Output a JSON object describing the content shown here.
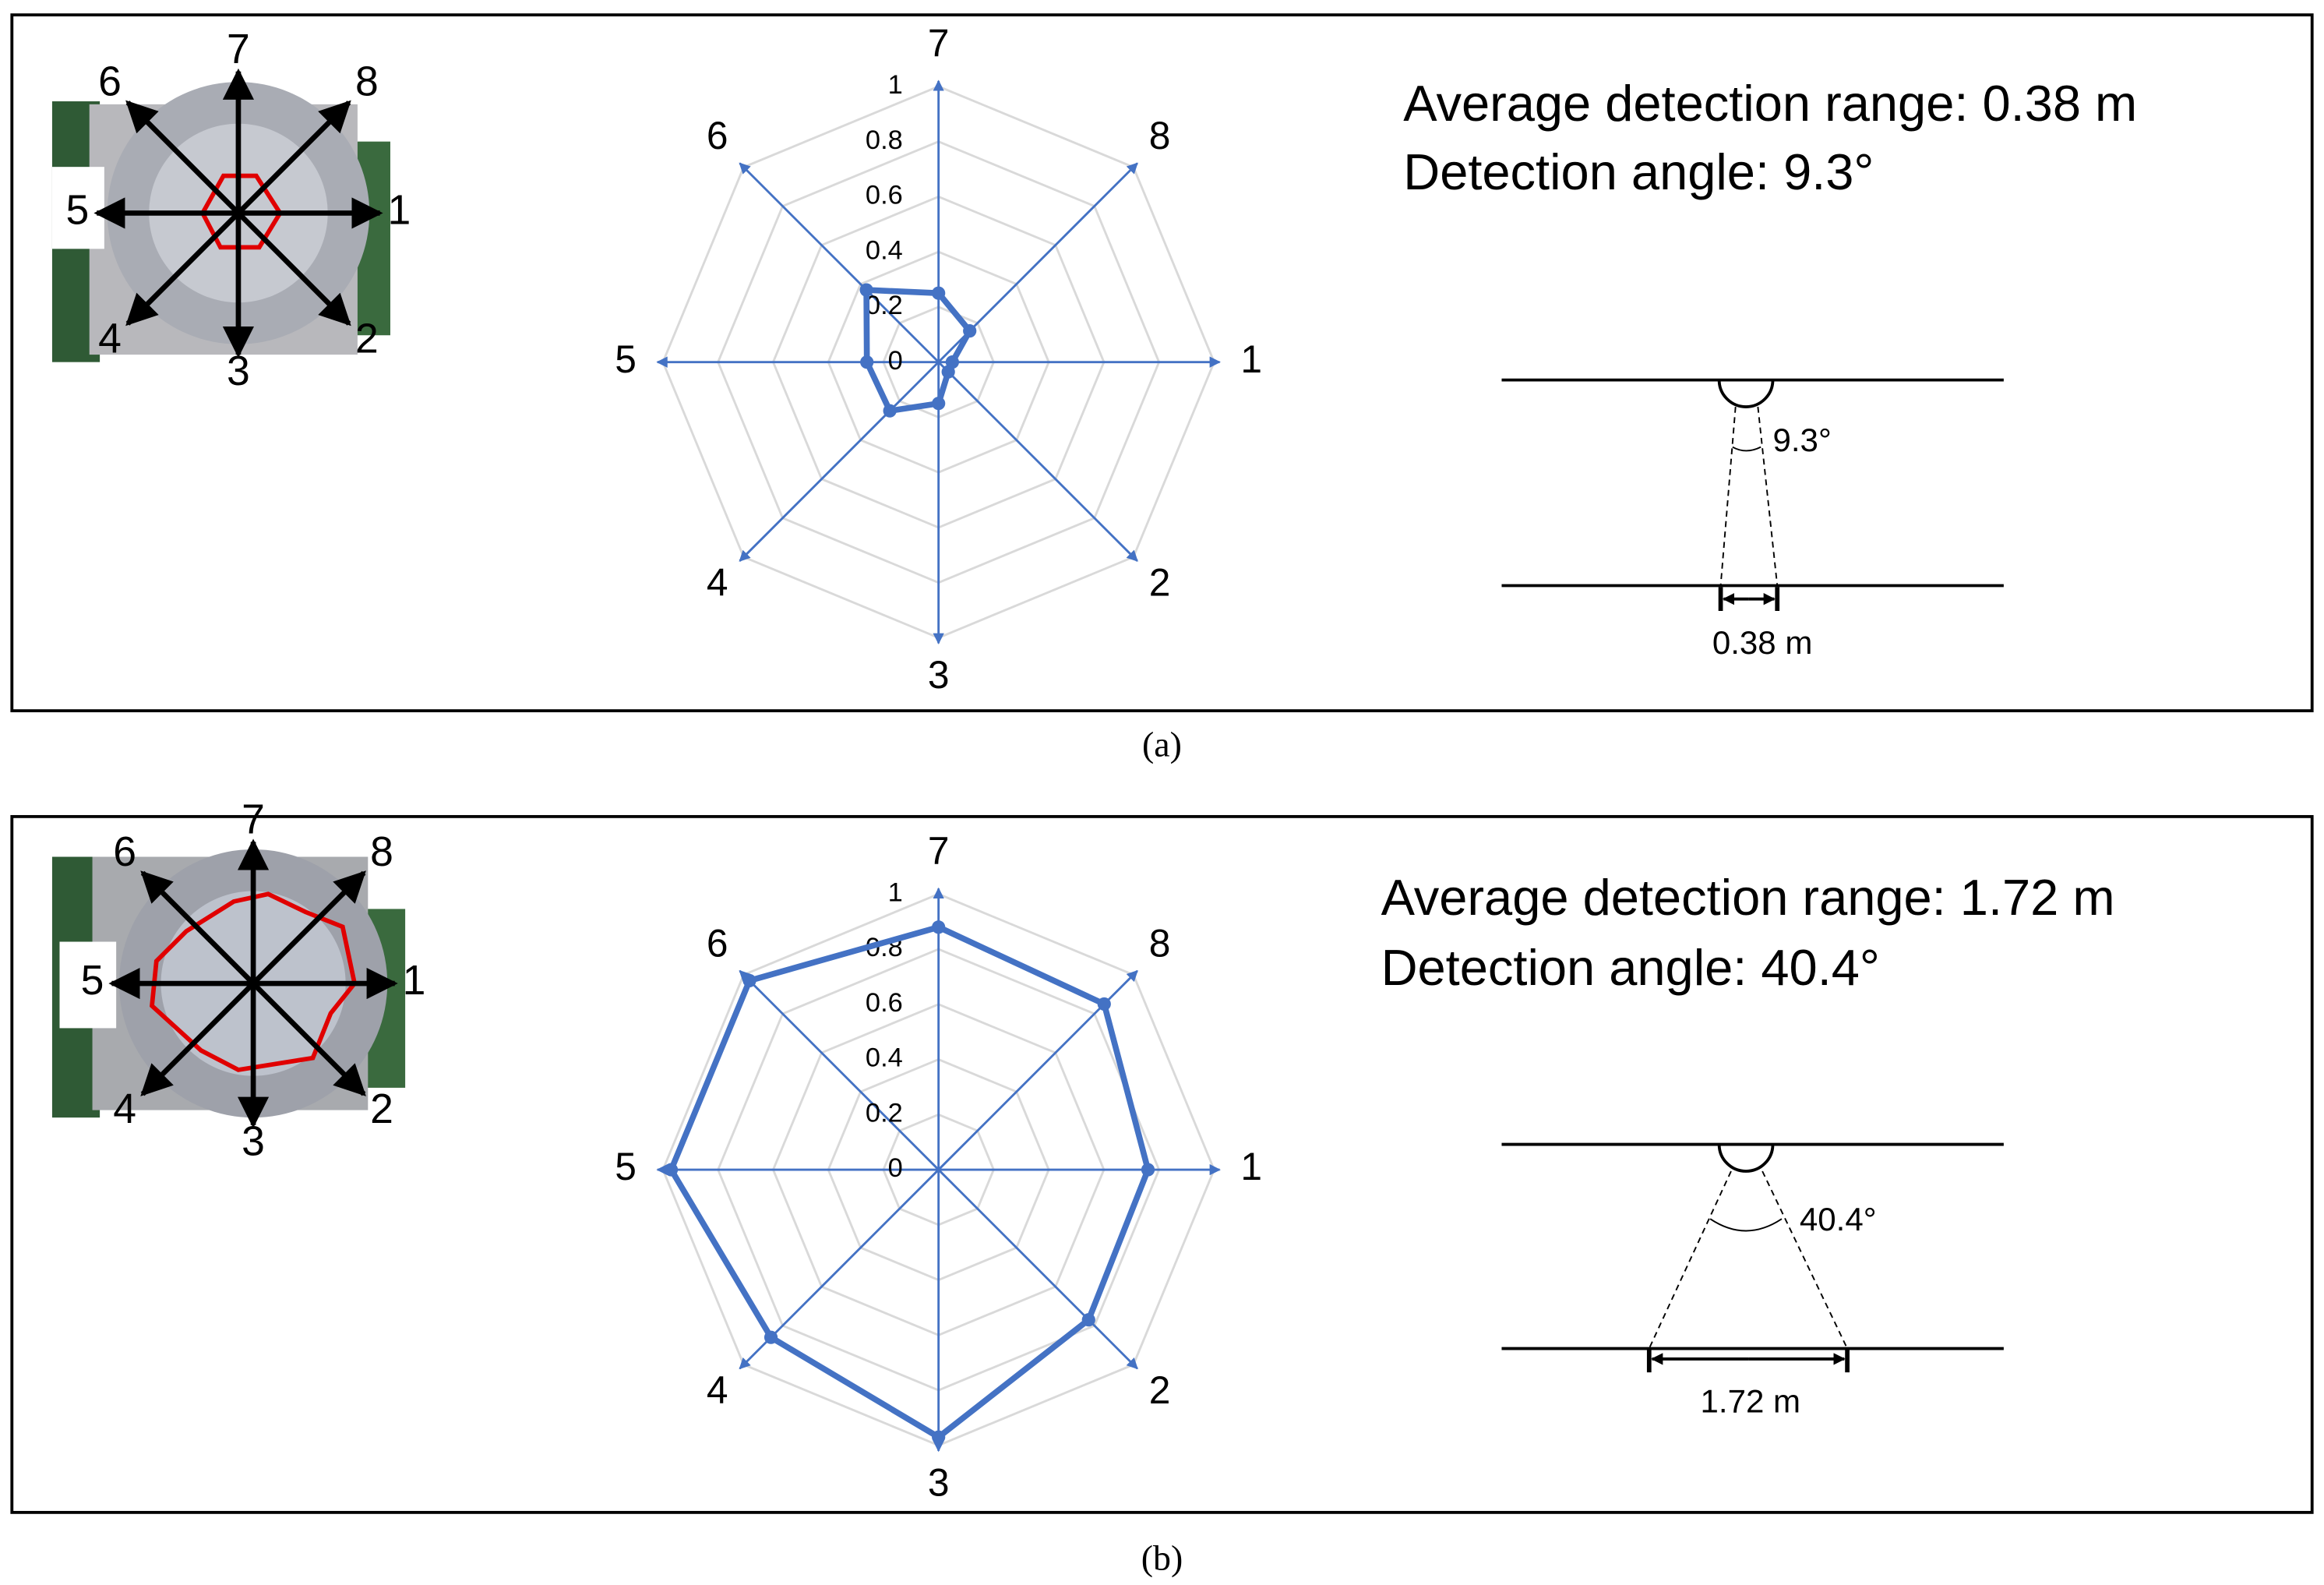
{
  "chart_data": [
    {
      "type": "radar",
      "categories": [
        "1",
        "2",
        "3",
        "4",
        "5",
        "6",
        "7",
        "8"
      ],
      "series": [
        {
          "color": "#4472c4",
          "values": [
            0.05,
            0.05,
            0.15,
            0.25,
            0.26,
            0.37,
            0.25,
            0.16
          ]
        }
      ],
      "ylim": [
        0,
        1
      ],
      "yticks": [
        0,
        0.2,
        0.4,
        0.6,
        0.8,
        1
      ],
      "grid": true
    },
    {
      "type": "radar",
      "categories": [
        "1",
        "2",
        "3",
        "4",
        "5",
        "6",
        "7",
        "8"
      ],
      "series": [
        {
          "color": "#4472c4",
          "values": [
            0.76,
            0.77,
            0.97,
            0.86,
            0.97,
            0.97,
            0.88,
            0.85
          ]
        }
      ],
      "ylim": [
        0,
        1
      ],
      "yticks": [
        0,
        0.2,
        0.4,
        0.6,
        0.8,
        1
      ],
      "grid": true
    }
  ],
  "panels": [
    {
      "range_text": "Average detection range: 0.38 m",
      "angle_text": "Detection angle: 9.3°",
      "diagram": {
        "angle_label": "9.3°",
        "width_label": "0.38 m"
      },
      "caption": "(a)"
    },
    {
      "range_text": "Average detection range: 1.72 m",
      "angle_text": "Detection angle: 40.4°",
      "diagram": {
        "angle_label": "40.4°",
        "width_label": "1.72 m"
      },
      "caption": "(b)"
    }
  ]
}
